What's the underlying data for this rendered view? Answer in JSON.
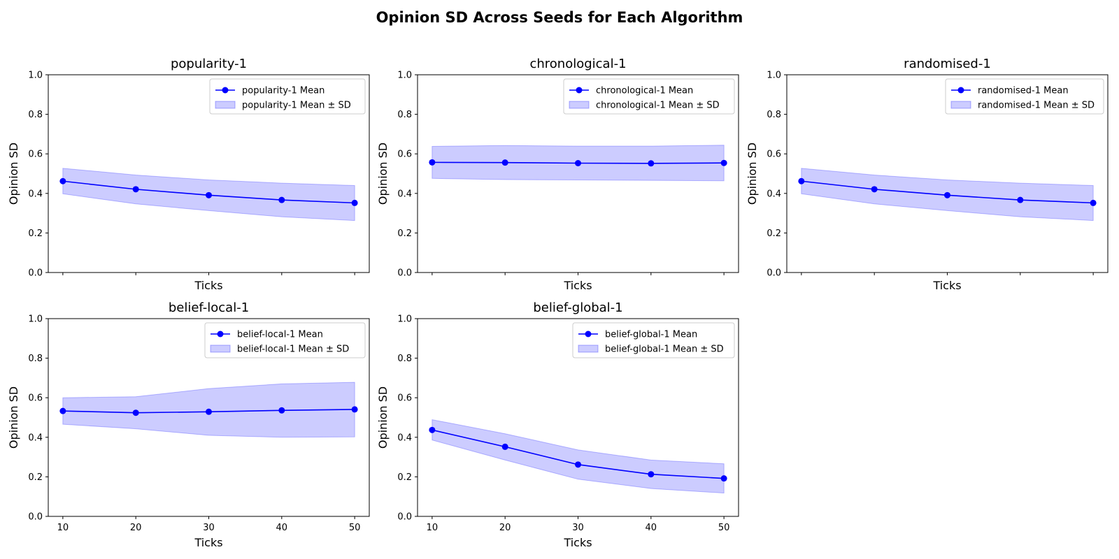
{
  "figure": {
    "title": "Opinion SD Across Seeds for Each Algorithm"
  },
  "colors": {
    "line": "#0000ff",
    "band_fill": "#0000ff",
    "band_alpha": 0.2,
    "axes": "#000000",
    "background": "#ffffff"
  },
  "chart_data": [
    {
      "type": "line",
      "title": "popularity-1",
      "xlabel": "Ticks",
      "ylabel": "Opinion SD",
      "x": [
        10,
        20,
        30,
        40,
        50
      ],
      "x_tick_labels_shown": false,
      "ylim": [
        0.0,
        1.0
      ],
      "yticks": [
        "0.0",
        "0.2",
        "0.4",
        "0.6",
        "0.8",
        "1.0"
      ],
      "legend_position": "upper right",
      "series": [
        {
          "name": "popularity-1 Mean",
          "kind": "line-marker",
          "values": [
            0.462,
            0.421,
            0.391,
            0.367,
            0.352
          ]
        },
        {
          "name": "popularity-1 Mean ± SD",
          "kind": "band",
          "lower": [
            0.398,
            0.347,
            0.313,
            0.282,
            0.263
          ],
          "upper": [
            0.527,
            0.493,
            0.468,
            0.452,
            0.44
          ]
        }
      ]
    },
    {
      "type": "line",
      "title": "chronological-1",
      "xlabel": "Ticks",
      "ylabel": "Opinion SD",
      "x": [
        10,
        20,
        30,
        40,
        50
      ],
      "x_tick_labels_shown": false,
      "ylim": [
        0.0,
        1.0
      ],
      "yticks": [
        "0.0",
        "0.2",
        "0.4",
        "0.6",
        "0.8",
        "1.0"
      ],
      "legend_position": "upper right",
      "series": [
        {
          "name": "chronological-1 Mean",
          "kind": "line-marker",
          "values": [
            0.557,
            0.556,
            0.553,
            0.552,
            0.554
          ]
        },
        {
          "name": "chronological-1 Mean ± SD",
          "kind": "band",
          "lower": [
            0.476,
            0.47,
            0.468,
            0.466,
            0.464
          ],
          "upper": [
            0.638,
            0.642,
            0.639,
            0.639,
            0.644
          ]
        }
      ]
    },
    {
      "type": "line",
      "title": "randomised-1",
      "xlabel": "Ticks",
      "ylabel": "Opinion SD",
      "x": [
        10,
        20,
        30,
        40,
        50
      ],
      "x_tick_labels_shown": false,
      "ylim": [
        0.0,
        1.0
      ],
      "yticks": [
        "0.0",
        "0.2",
        "0.4",
        "0.6",
        "0.8",
        "1.0"
      ],
      "legend_position": "upper right",
      "series": [
        {
          "name": "randomised-1 Mean",
          "kind": "line-marker",
          "values": [
            0.462,
            0.421,
            0.391,
            0.367,
            0.352
          ]
        },
        {
          "name": "randomised-1 Mean ± SD",
          "kind": "band",
          "lower": [
            0.398,
            0.347,
            0.313,
            0.282,
            0.263
          ],
          "upper": [
            0.527,
            0.493,
            0.468,
            0.452,
            0.44
          ]
        }
      ]
    },
    {
      "type": "line",
      "title": "belief-local-1",
      "xlabel": "Ticks",
      "ylabel": "Opinion SD",
      "x": [
        10,
        20,
        30,
        40,
        50
      ],
      "x_tick_labels_shown": true,
      "xticks": [
        "10",
        "20",
        "30",
        "40",
        "50"
      ],
      "ylim": [
        0.0,
        1.0
      ],
      "yticks": [
        "0.0",
        "0.2",
        "0.4",
        "0.6",
        "0.8",
        "1.0"
      ],
      "legend_position": "upper right",
      "series": [
        {
          "name": "belief-local-1 Mean",
          "kind": "line-marker",
          "values": [
            0.533,
            0.524,
            0.529,
            0.536,
            0.541
          ]
        },
        {
          "name": "belief-local-1 Mean ± SD",
          "kind": "band",
          "lower": [
            0.466,
            0.443,
            0.41,
            0.4,
            0.402
          ],
          "upper": [
            0.6,
            0.605,
            0.646,
            0.67,
            0.678
          ]
        }
      ]
    },
    {
      "type": "line",
      "title": "belief-global-1",
      "xlabel": "Ticks",
      "ylabel": "Opinion SD",
      "x": [
        10,
        20,
        30,
        40,
        50
      ],
      "x_tick_labels_shown": true,
      "xticks": [
        "10",
        "20",
        "30",
        "40",
        "50"
      ],
      "ylim": [
        0.0,
        1.0
      ],
      "yticks": [
        "0.0",
        "0.2",
        "0.4",
        "0.6",
        "0.8",
        "1.0"
      ],
      "legend_position": "upper right",
      "series": [
        {
          "name": "belief-global-1 Mean",
          "kind": "line-marker",
          "values": [
            0.437,
            0.352,
            0.262,
            0.213,
            0.192
          ]
        },
        {
          "name": "belief-global-1 Mean ± SD",
          "kind": "band",
          "lower": [
            0.386,
            0.285,
            0.188,
            0.141,
            0.118
          ],
          "upper": [
            0.489,
            0.418,
            0.336,
            0.285,
            0.266
          ]
        }
      ]
    }
  ]
}
